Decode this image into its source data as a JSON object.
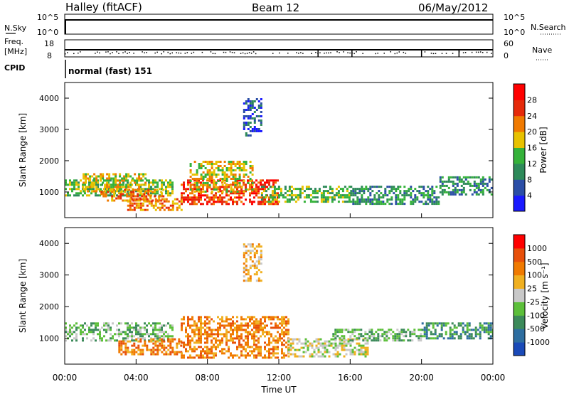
{
  "header": {
    "station": "Halley (fitACF)",
    "beam": "Beam 12",
    "date": "06/May/2012"
  },
  "nsky_panel": {
    "left_label": "N.Sky",
    "right_label": "N.Search",
    "ticks_left": [
      "10^5",
      "10^0"
    ],
    "ticks_right": [
      "10^5",
      "10^0"
    ]
  },
  "freq_panel": {
    "left_label_line1": "Freq.",
    "left_label_line2": "[MHz]",
    "right_label": "Nave",
    "ticks_left": [
      "18",
      "8"
    ],
    "ticks_right": [
      "60",
      "0"
    ]
  },
  "cpid": {
    "label": "CPID",
    "value": "normal (fast) 151"
  },
  "colors": {
    "power_scale": [
      "#1a1aff",
      "#2b4ea6",
      "#2e8a5a",
      "#35b23a",
      "#e8c200",
      "#f07a00",
      "#e62a0a",
      "#ff0000"
    ],
    "velocity_scale": [
      "#1a4ab8",
      "#2e6ea0",
      "#3c8a5a",
      "#5cbf3a",
      "#c8c8c8",
      "#f0b020",
      "#f07a00",
      "#e8500a",
      "#ff0000"
    ]
  },
  "chart_data": [
    {
      "type": "heatmap",
      "name": "power",
      "ylabel": "Slant Range [km]",
      "ylim": [
        180,
        4500
      ],
      "yticks": [
        "1000",
        "2000",
        "3000",
        "4000"
      ],
      "xlim_hours": [
        0,
        24
      ],
      "colorbar": {
        "label": "Power [dB]",
        "ticks": [
          "28",
          "24",
          "20",
          "16",
          "12",
          "8",
          "4"
        ]
      },
      "echo_regions": [
        {
          "x": [
            0.0,
            6.0
          ],
          "y": [
            900,
            1400
          ],
          "level": 3
        },
        {
          "x": [
            1.0,
            4.5
          ],
          "y": [
            1000,
            1600
          ],
          "level": 4
        },
        {
          "x": [
            2.0,
            5.5
          ],
          "y": [
            700,
            1100
          ],
          "level": 5
        },
        {
          "x": [
            3.5,
            6.5
          ],
          "y": [
            400,
            800
          ],
          "level": 5
        },
        {
          "x": [
            6.5,
            12.0
          ],
          "y": [
            600,
            1400
          ],
          "level": 6
        },
        {
          "x": [
            7.0,
            10.5
          ],
          "y": [
            1000,
            2000
          ],
          "level": 4
        },
        {
          "x": [
            10.0,
            11.0
          ],
          "y": [
            2800,
            4000
          ],
          "level": 1
        },
        {
          "x": [
            11.0,
            16.0
          ],
          "y": [
            700,
            1200
          ],
          "level": 3
        },
        {
          "x": [
            16.0,
            21.0
          ],
          "y": [
            600,
            1200
          ],
          "level": 2
        },
        {
          "x": [
            21.0,
            24.0
          ],
          "y": [
            900,
            1500
          ],
          "level": 2
        }
      ]
    },
    {
      "type": "heatmap",
      "name": "velocity",
      "ylabel": "Slant Range [km]",
      "ylim": [
        180,
        4500
      ],
      "yticks": [
        "1000",
        "2000",
        "3000",
        "4000"
      ],
      "xlabel": "Time UT",
      "xlim_hours": [
        0,
        24
      ],
      "xticks": [
        "00:00",
        "04:00",
        "08:00",
        "12:00",
        "16:00",
        "20:00",
        "00:00"
      ],
      "colorbar": {
        "label": "Velocity [m s⁻¹]",
        "ticks": [
          "1000",
          "500",
          "100",
          "25",
          "-25",
          "-100",
          "-500",
          "-1000"
        ]
      },
      "echo_regions": [
        {
          "x": [
            0.0,
            6.0
          ],
          "y": [
            900,
            1500
          ],
          "level": 3
        },
        {
          "x": [
            3.0,
            6.5
          ],
          "y": [
            500,
            1000
          ],
          "level": 6
        },
        {
          "x": [
            6.5,
            12.5
          ],
          "y": [
            400,
            1700
          ],
          "level": 6
        },
        {
          "x": [
            10.0,
            11.0
          ],
          "y": [
            2800,
            4000
          ],
          "level": 5
        },
        {
          "x": [
            12.5,
            17.0
          ],
          "y": [
            400,
            1000
          ],
          "level": 4
        },
        {
          "x": [
            15.0,
            20.0
          ],
          "y": [
            900,
            1300
          ],
          "level": 3
        },
        {
          "x": [
            20.0,
            24.0
          ],
          "y": [
            1000,
            1500
          ],
          "level": 2
        }
      ]
    }
  ]
}
